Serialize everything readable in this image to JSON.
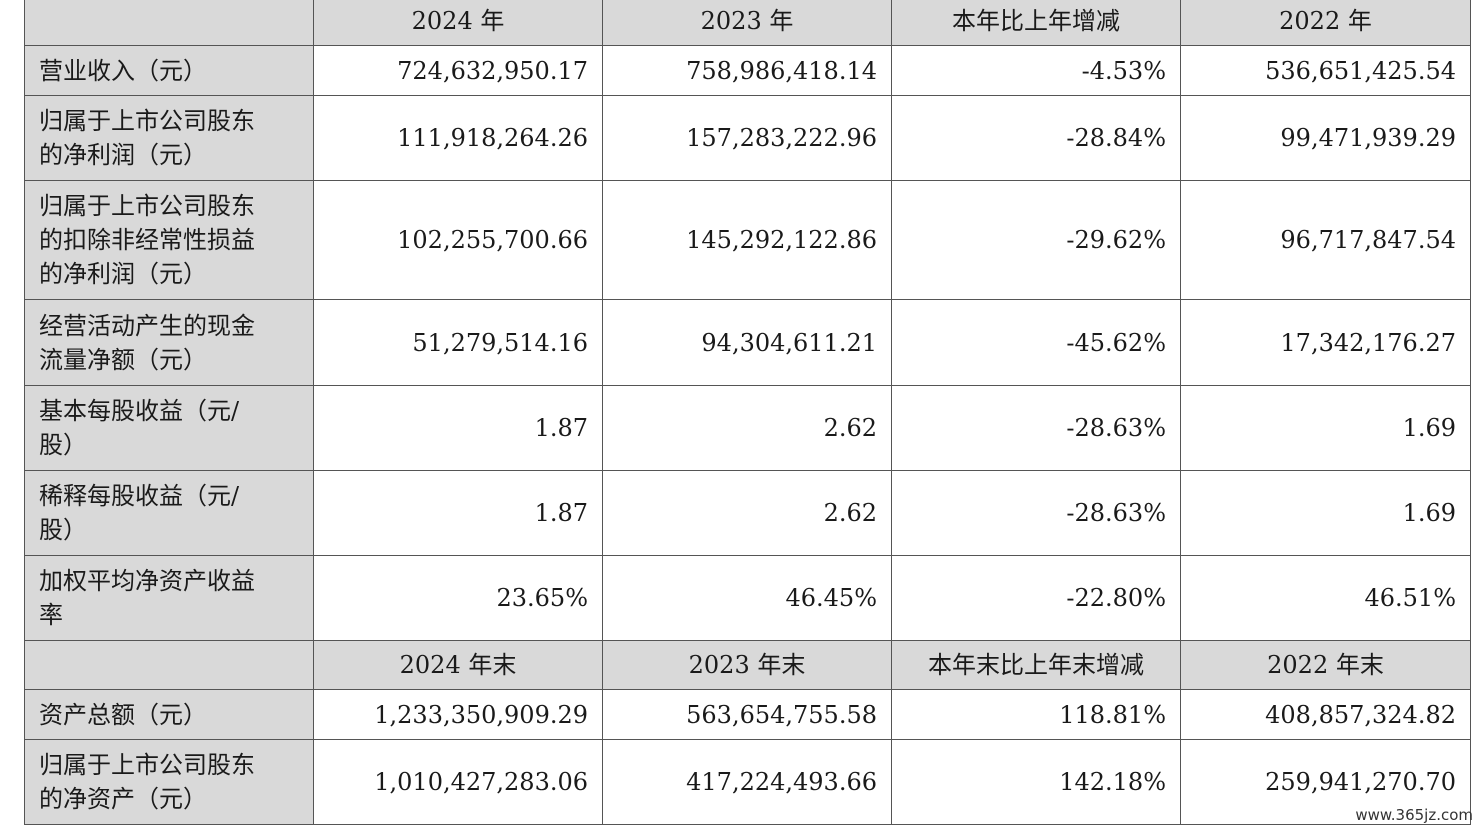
{
  "header1": [
    "",
    "2024 年",
    "2023 年",
    "本年比上年增减",
    "2022 年"
  ],
  "header2": [
    "",
    "2024 年末",
    "2023 年末",
    "本年末比上年末增减",
    "2022 年末"
  ],
  "rows1": [
    {
      "label": [
        "营业收入（元）"
      ],
      "values": [
        "724,632,950.17",
        "758,986,418.14",
        "-4.53%",
        "536,651,425.54"
      ]
    },
    {
      "label": [
        "归属于上市公司股东",
        "的净利润（元）"
      ],
      "values": [
        "111,918,264.26",
        "157,283,222.96",
        "-28.84%",
        "99,471,939.29"
      ]
    },
    {
      "label": [
        "归属于上市公司股东",
        "的扣除非经常性损益",
        "的净利润（元）"
      ],
      "values": [
        "102,255,700.66",
        "145,292,122.86",
        "-29.62%",
        "96,717,847.54"
      ]
    },
    {
      "label": [
        "经营活动产生的现金",
        "流量净额（元）"
      ],
      "values": [
        "51,279,514.16",
        "94,304,611.21",
        "-45.62%",
        "17,342,176.27"
      ]
    },
    {
      "label": [
        "基本每股收益（元/",
        "股）"
      ],
      "values": [
        "1.87",
        "2.62",
        "-28.63%",
        "1.69"
      ]
    },
    {
      "label": [
        "稀释每股收益（元/",
        "股）"
      ],
      "values": [
        "1.87",
        "2.62",
        "-28.63%",
        "1.69"
      ]
    },
    {
      "label": [
        "加权平均净资产收益",
        "率"
      ],
      "values": [
        "23.65%",
        "46.45%",
        "-22.80%",
        "46.51%"
      ]
    }
  ],
  "rows2": [
    {
      "label": [
        "资产总额（元）"
      ],
      "values": [
        "1,233,350,909.29",
        "563,654,755.58",
        "118.81%",
        "408,857,324.82"
      ]
    },
    {
      "label": [
        "归属于上市公司股东",
        "的净资产（元）"
      ],
      "values": [
        "1,010,427,283.06",
        "417,224,493.66",
        "142.18%",
        "259,941,270.70"
      ]
    }
  ],
  "watermark": "www.365jz.com"
}
